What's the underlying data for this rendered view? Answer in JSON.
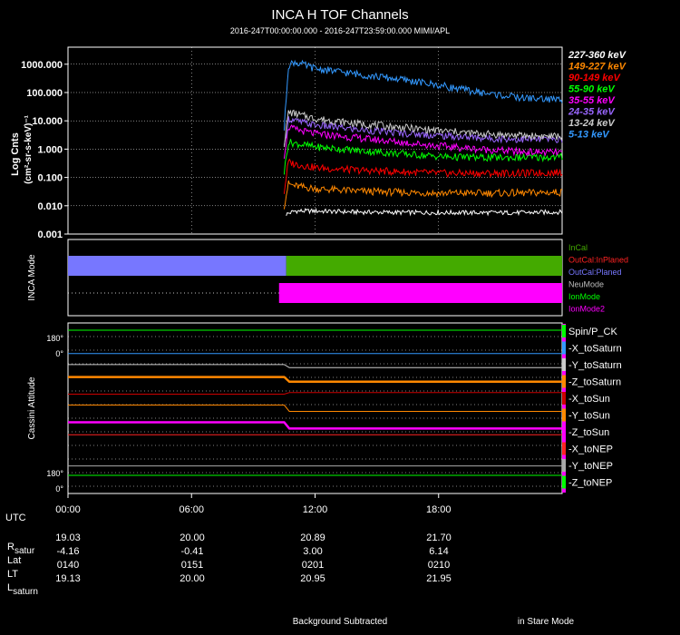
{
  "title": "INCA H TOF Channels",
  "subtitle": "2016-247T00:00:00.000 - 2016-247T23:59:00.000 MIMI/APL",
  "footer": {
    "left": "Background Subtracted",
    "right": "in Stare Mode"
  },
  "colors": {
    "bg": "#000000",
    "fg": "#ffffff",
    "incal": "#44aa00",
    "outcal_planed": "#7777ff",
    "ionmode": "#ff00ff"
  },
  "chart_data": [
    {
      "type": "line",
      "name": "tof-channels",
      "ylabel": "Log Cnts",
      "ylabel_units": "(cm²-sr-s-keV)⁻¹",
      "yscale": "log",
      "ylim": [
        0.001,
        4000
      ],
      "xlim": [
        0,
        24
      ],
      "yticks": [
        {
          "value": 1000,
          "label": "1000.000"
        },
        {
          "value": 100,
          "label": "100.000"
        },
        {
          "value": 10,
          "label": "10.000"
        },
        {
          "value": 1,
          "label": "1.000"
        },
        {
          "value": 0.1,
          "label": "0.100"
        },
        {
          "value": 0.01,
          "label": "0.010"
        },
        {
          "value": 0.001,
          "label": "0.001"
        }
      ],
      "data_start_hour": 10.5,
      "series": [
        {
          "name": "227-360 keV",
          "color": "#ffffff",
          "hours": [
            10.6,
            11,
            12,
            14,
            16,
            18,
            20,
            22,
            24
          ],
          "values": [
            0.005,
            0.0065,
            0.0065,
            0.006,
            0.0058,
            0.0057,
            0.0057,
            0.0057,
            0.006
          ]
        },
        {
          "name": "149-227 keV",
          "color": "#ff8800",
          "hours": [
            10.5,
            10.7,
            11,
            12,
            14,
            16,
            18,
            20,
            22,
            24
          ],
          "values": [
            0.01,
            0.06,
            0.05,
            0.04,
            0.033,
            0.03,
            0.028,
            0.028,
            0.028,
            0.03
          ]
        },
        {
          "name": "90-149 keV",
          "color": "#ff0000",
          "hours": [
            10.5,
            10.7,
            11,
            12,
            14,
            16,
            18,
            20,
            22,
            24
          ],
          "values": [
            0.03,
            0.35,
            0.3,
            0.22,
            0.18,
            0.16,
            0.14,
            0.14,
            0.14,
            0.15
          ]
        },
        {
          "name": "55-90 keV",
          "color": "#00ff00",
          "hours": [
            10.5,
            10.7,
            11,
            12,
            14,
            16,
            18,
            20,
            22,
            24
          ],
          "values": [
            0.15,
            1.8,
            1.6,
            1.2,
            0.9,
            0.7,
            0.55,
            0.5,
            0.5,
            0.52
          ]
        },
        {
          "name": "35-55 keV",
          "color": "#ff00ff",
          "hours": [
            10.5,
            10.7,
            11,
            12,
            14,
            16,
            18,
            20,
            22,
            24
          ],
          "values": [
            0.6,
            6,
            5,
            3.5,
            2.5,
            1.8,
            1.3,
            1.0,
            0.8,
            0.75
          ]
        },
        {
          "name": "24-35 keV",
          "color": "#9966ff",
          "hours": [
            10.5,
            10.7,
            11,
            12,
            14,
            16,
            18,
            20,
            22,
            24
          ],
          "values": [
            1,
            12,
            10,
            7,
            5,
            3.8,
            3,
            2.5,
            2.2,
            2.2
          ]
        },
        {
          "name": "13-24 keV",
          "color": "#cccccc",
          "hours": [
            10.5,
            10.7,
            11,
            12,
            14,
            16,
            18,
            20,
            22,
            24
          ],
          "values": [
            1.5,
            20,
            18,
            12,
            8,
            6,
            4.5,
            3.5,
            3,
            2.8
          ]
        },
        {
          "name": "5-13 keV",
          "color": "#3399ff",
          "hours": [
            10.5,
            10.7,
            11,
            12,
            14,
            16,
            18,
            20,
            22,
            24
          ],
          "values": [
            5,
            900,
            1200,
            700,
            450,
            300,
            180,
            100,
            65,
            55
          ]
        }
      ]
    },
    {
      "type": "timeline",
      "name": "inca-mode",
      "ylabel": "INCA Mode",
      "xlim": [
        0,
        24
      ],
      "rows": [
        {
          "label": "InCal",
          "color": "#44aa00"
        },
        {
          "label": "OutCal:InPlaned",
          "color": "#ff2222"
        },
        {
          "label": "OutCal:Planed",
          "color": "#7777ff"
        },
        {
          "label": "NeuMode",
          "color": "#bbbbbb"
        },
        {
          "label": "IonMode",
          "color": "#00ff00"
        },
        {
          "label": "IonMode2",
          "color": "#ff00ff"
        }
      ],
      "bars": [
        {
          "track": 0,
          "start": 0,
          "end": 10.6,
          "color": "#7777ff"
        },
        {
          "track": 0,
          "start": 10.6,
          "end": 24,
          "color": "#44aa00"
        },
        {
          "track": 1,
          "start": 10.25,
          "end": 24,
          "color": "#ff00ff"
        }
      ],
      "dotted_track": 1
    },
    {
      "type": "line",
      "name": "cassini-attitude",
      "ylabel": "Cassini Attitude",
      "xlim": [
        0,
        24
      ],
      "top_tick_labels": [
        "180°",
        "0°"
      ],
      "bottom_tick_labels": [
        "180°",
        "0°"
      ],
      "series": [
        {
          "name": "Spin/P_CK",
          "color": "#00ff00",
          "before": 1.0,
          "after": 1.0
        },
        {
          "name": "-X_toSaturn",
          "color": "#3399ff",
          "before": 0.85,
          "after": 0.85
        },
        {
          "name": "-Y_toSaturn",
          "color": "#cccccc",
          "before": 0.78,
          "after": 0.76
        },
        {
          "name": "-Z_toSaturn",
          "color": "#ff8800",
          "before": 0.7,
          "after": 0.67
        },
        {
          "name": "-X_toSun",
          "color": "#cc0000",
          "before": 0.59,
          "after": 0.6
        },
        {
          "name": "-Y_toSun",
          "color": "#ff8800",
          "before": 0.52,
          "after": 0.48
        },
        {
          "name": "-Z_toSun",
          "color": "#ff00ff",
          "before": 0.41,
          "after": 0.37
        },
        {
          "name": "-X_toNEP",
          "color": "#ff2222",
          "before": 0.33,
          "after": 0.33
        },
        {
          "name": "-Y_toNEP",
          "color": "#aaaaaa",
          "before": 0.13,
          "after": 0.13
        },
        {
          "name": "-Z_toNEP",
          "color": "#00ff00",
          "before": 0.07,
          "after": 0.07
        }
      ]
    }
  ],
  "xaxis": {
    "ticks": [
      {
        "hour": 0,
        "label": "00:00"
      },
      {
        "hour": 6,
        "label": "06:00"
      },
      {
        "hour": 12,
        "label": "12:00"
      },
      {
        "hour": 18,
        "label": "18:00"
      }
    ]
  },
  "ephemeris": {
    "utc_label": "UTC",
    "rows": [
      {
        "label": "R",
        "sub": "satur",
        "values": [
          "19.03",
          "20.00",
          "20.89",
          "21.70"
        ]
      },
      {
        "label": "Lat",
        "sub": "",
        "values": [
          "-4.16",
          "-0.41",
          "3.00",
          "6.14"
        ]
      },
      {
        "label": "LT",
        "sub": "",
        "values": [
          "0140",
          "0151",
          "0201",
          "0210"
        ]
      },
      {
        "label": "L",
        "sub": "saturn",
        "values": [
          "19.13",
          "20.00",
          "20.95",
          "21.95"
        ]
      }
    ]
  }
}
